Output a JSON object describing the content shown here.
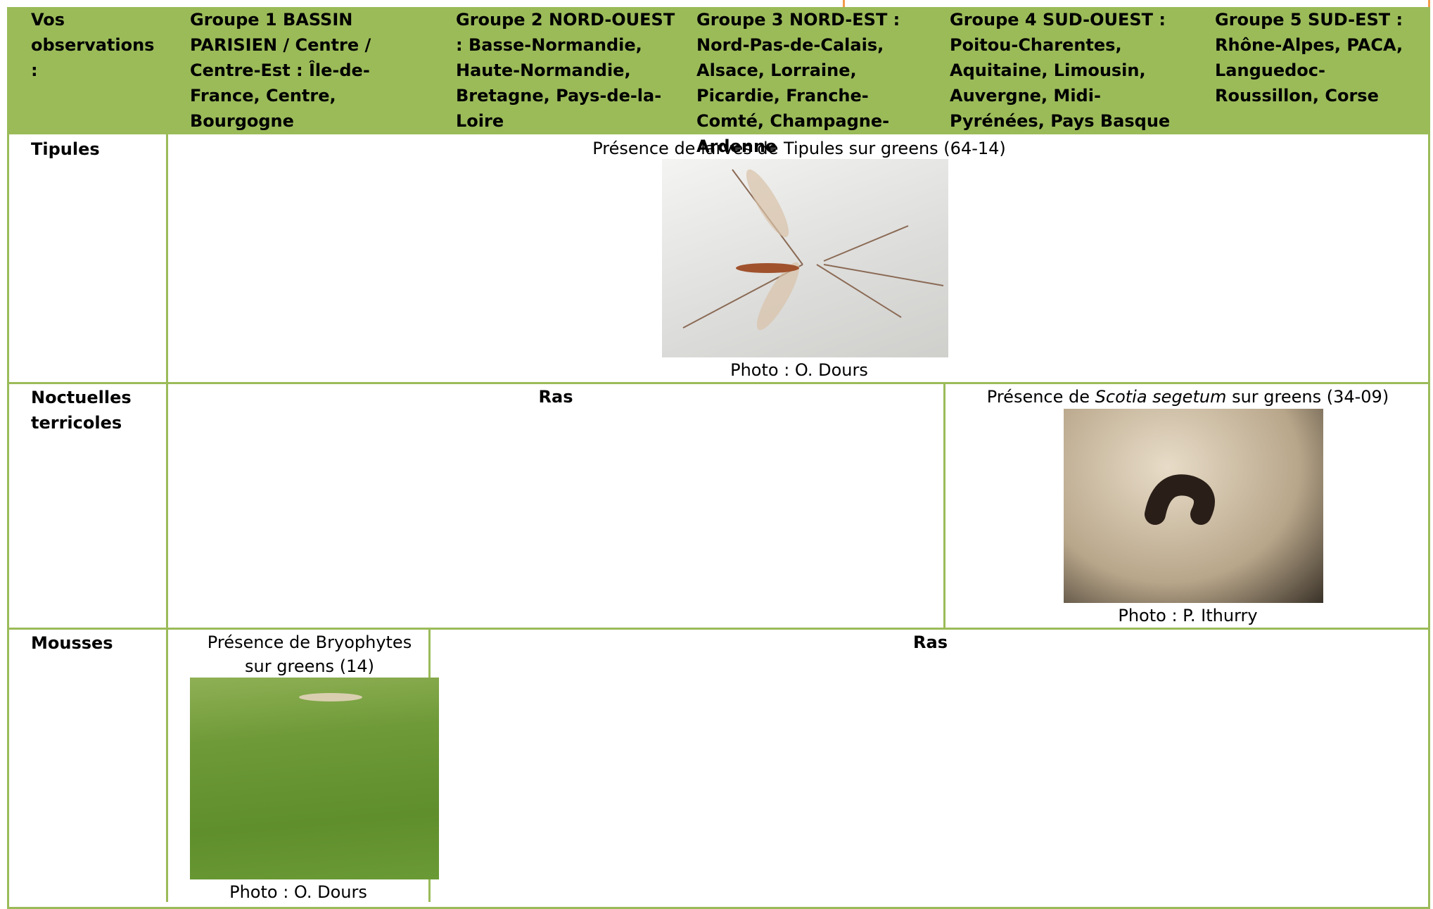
{
  "header": {
    "columns": [
      "Vos observations :",
      "Groupe 1 BASSIN PARISIEN / Centre / Centre-Est : Île-de-France, Centre, Bourgogne",
      "Groupe 2 NORD-OUEST : Basse-Normandie, Haute-Normandie, Bretagne, Pays-de-la-Loire",
      "Groupe 3 NORD-EST : Nord-Pas-de-Calais, Alsace, Lorraine, Picardie, Franche-Comté, Champagne-Ardenne",
      "Groupe 4 SUD-OUEST : Poitou-Charentes, Aquitaine, Limousin, Auvergne, Midi-Pyrénées, Pays Basque",
      "Groupe 5 SUD-EST : Rhône-Alpes, PACA, Languedoc-Roussillon, Corse"
    ]
  },
  "rows": [
    {
      "label": "Tipules",
      "cells": [
        {
          "text": "Présence de larves de Tipules sur greens (64-14)",
          "caption": "Photo : O. Dours"
        }
      ]
    },
    {
      "label": "Noctuelles terricoles",
      "cells": [
        {
          "text": "Ras"
        },
        {
          "text_parts": [
            "Présence de ",
            "Scotia segetum",
            " sur greens  (34-09)"
          ],
          "caption": "Photo : P. Ithurry"
        }
      ]
    },
    {
      "label": "Mousses",
      "cells": [
        {
          "text": "Présence de Bryophytes sur greens (14)",
          "caption": "Photo : O. Dours"
        },
        {
          "text": "Ras"
        }
      ]
    }
  ]
}
